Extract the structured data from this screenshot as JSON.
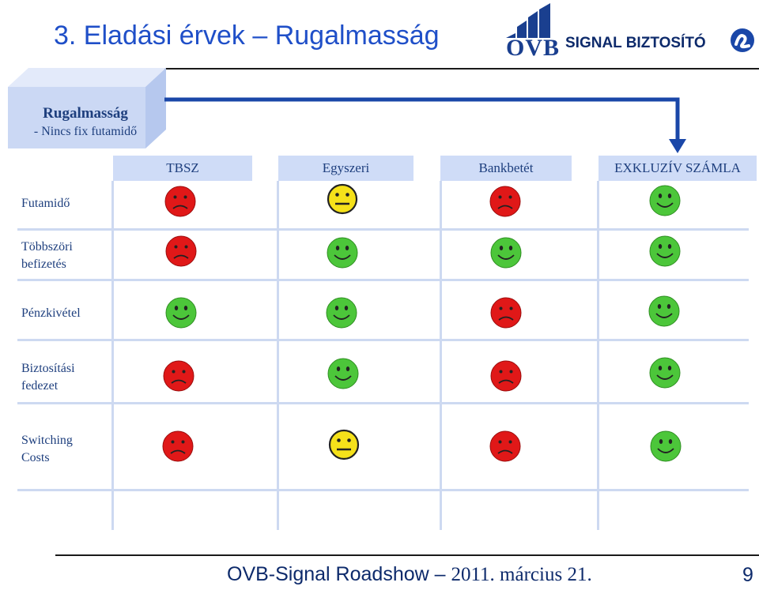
{
  "slide": {
    "title": "3. Eladási érvek – Rugalmasság"
  },
  "logos": {
    "ovb": "OVB",
    "signal": "SIGNAL BIZTOSÍTÓ"
  },
  "card": {
    "title": "Rugalmasság",
    "subtitle": "- Nincs fix futamidő"
  },
  "columns": [
    "TBSZ",
    "Egyszeri",
    "Bankbetét",
    "EXKLUZÍV SZÁMLA"
  ],
  "rows": [
    {
      "label": "Futamidő",
      "faces": [
        "sad",
        "neutral",
        "sad",
        "happy"
      ]
    },
    {
      "label": "Többszöri befizetés",
      "faces": [
        "sad",
        "happy",
        "happy",
        "happy"
      ]
    },
    {
      "label": "Pénzkivétel",
      "faces": [
        "happy",
        "happy",
        "sad",
        "happy"
      ]
    },
    {
      "label": "Biztosítási fedezet",
      "faces": [
        "sad",
        "happy",
        "sad",
        "happy"
      ]
    },
    {
      "label": "Switching Costs",
      "faces": [
        "sad",
        "neutral",
        "sad",
        "happy"
      ]
    }
  ],
  "footer": {
    "part1": "OVB-Signal Roadshow – ",
    "part2": "2011.  március 21.",
    "page": "9"
  },
  "colors": {
    "happy": "#4cc63a",
    "sad": "#e01818",
    "neutral": "#f5e11a",
    "accent": "#1a47a8"
  }
}
